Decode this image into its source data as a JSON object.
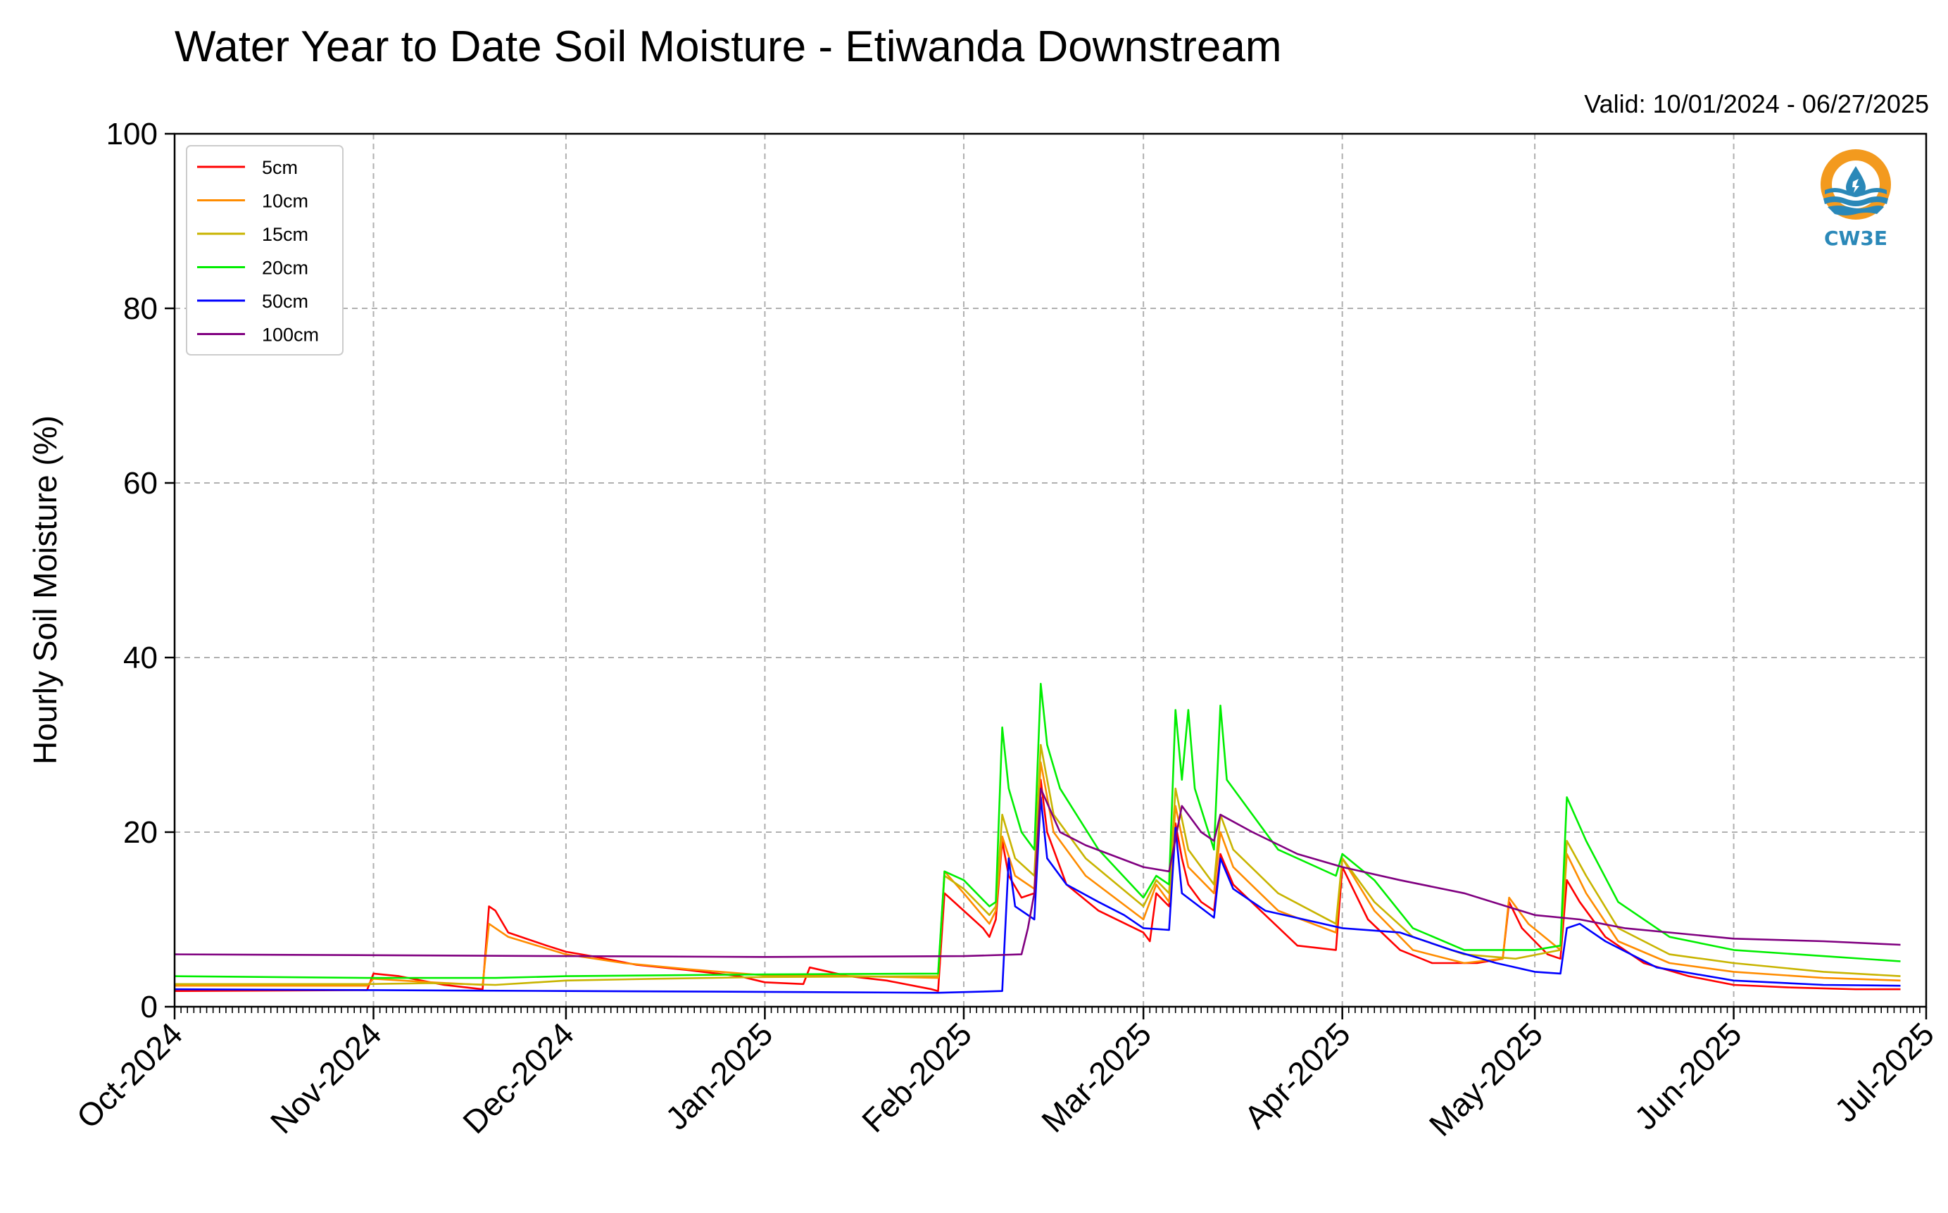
{
  "chart_data": {
    "type": "line",
    "title": "Water Year to Date Soil Moisture - Etiwanda Downstream",
    "subtitle": "Valid: 10/01/2024 - 06/27/2025",
    "xlabel": "",
    "ylabel": "Hourly Soil Moisture (%)",
    "ylim": [
      0,
      100
    ],
    "xlim": [
      "2024-10-01",
      "2025-07-01"
    ],
    "yticks": [
      "0",
      "20",
      "40",
      "60",
      "80",
      "100"
    ],
    "xticks": [
      {
        "date": "2024-10-01",
        "label": "Oct-2024"
      },
      {
        "date": "2024-11-01",
        "label": "Nov-2024"
      },
      {
        "date": "2024-12-01",
        "label": "Dec-2024"
      },
      {
        "date": "2025-01-01",
        "label": "Jan-2025"
      },
      {
        "date": "2025-02-01",
        "label": "Feb-2025"
      },
      {
        "date": "2025-03-01",
        "label": "Mar-2025"
      },
      {
        "date": "2025-04-01",
        "label": "Apr-2025"
      },
      {
        "date": "2025-05-01",
        "label": "May-2025"
      },
      {
        "date": "2025-06-01",
        "label": "Jun-2025"
      },
      {
        "date": "2025-07-01",
        "label": "Jul-2025"
      }
    ],
    "grid": true,
    "legend_position": "top-left",
    "logo_text": "CW3E",
    "series": [
      {
        "name": "5cm",
        "color": "#ff0000",
        "points": [
          [
            "2024-10-01",
            1.8
          ],
          [
            "2024-10-31",
            1.9
          ],
          [
            "2024-11-01",
            3.8
          ],
          [
            "2024-11-05",
            3.5
          ],
          [
            "2024-11-12",
            2.5
          ],
          [
            "2024-11-18",
            2.0
          ],
          [
            "2024-11-19",
            11.5
          ],
          [
            "2024-11-20",
            11.0
          ],
          [
            "2024-11-22",
            8.5
          ],
          [
            "2024-11-28",
            7.0
          ],
          [
            "2024-12-01",
            6.3
          ],
          [
            "2024-12-05",
            5.8
          ],
          [
            "2024-12-12",
            4.8
          ],
          [
            "2024-12-20",
            4.2
          ],
          [
            "2024-12-28",
            3.5
          ],
          [
            "2025-01-01",
            2.8
          ],
          [
            "2025-01-07",
            2.6
          ],
          [
            "2025-01-08",
            4.5
          ],
          [
            "2025-01-14",
            3.5
          ],
          [
            "2025-01-20",
            3.0
          ],
          [
            "2025-01-27",
            2.0
          ],
          [
            "2025-01-28",
            1.8
          ],
          [
            "2025-01-29",
            13.0
          ],
          [
            "2025-02-01",
            11.0
          ],
          [
            "2025-02-04",
            9.0
          ],
          [
            "2025-02-05",
            8.0
          ],
          [
            "2025-02-06",
            10.0
          ],
          [
            "2025-02-07",
            19.0
          ],
          [
            "2025-02-08",
            15.0
          ],
          [
            "2025-02-10",
            12.5
          ],
          [
            "2025-02-12",
            13.0
          ],
          [
            "2025-02-13",
            26.0
          ],
          [
            "2025-02-14",
            20.0
          ],
          [
            "2025-02-17",
            14.0
          ],
          [
            "2025-02-22",
            11.0
          ],
          [
            "2025-03-01",
            8.5
          ],
          [
            "2025-03-02",
            7.5
          ],
          [
            "2025-03-03",
            13.0
          ],
          [
            "2025-03-05",
            11.5
          ],
          [
            "2025-03-06",
            21.0
          ],
          [
            "2025-03-07",
            17.0
          ],
          [
            "2025-03-08",
            14.0
          ],
          [
            "2025-03-10",
            12.0
          ],
          [
            "2025-03-12",
            11.0
          ],
          [
            "2025-03-13",
            17.5
          ],
          [
            "2025-03-15",
            14.0
          ],
          [
            "2025-03-20",
            10.5
          ],
          [
            "2025-03-25",
            7.0
          ],
          [
            "2025-03-31",
            6.5
          ],
          [
            "2025-04-01",
            16.0
          ],
          [
            "2025-04-05",
            10.0
          ],
          [
            "2025-04-10",
            6.5
          ],
          [
            "2025-04-15",
            5.0
          ],
          [
            "2025-04-22",
            5.0
          ],
          [
            "2025-04-26",
            5.5
          ],
          [
            "2025-04-27",
            12.0
          ],
          [
            "2025-04-29",
            9.0
          ],
          [
            "2025-05-03",
            6.0
          ],
          [
            "2025-05-05",
            5.5
          ],
          [
            "2025-05-06",
            14.5
          ],
          [
            "2025-05-08",
            12.0
          ],
          [
            "2025-05-12",
            8.0
          ],
          [
            "2025-05-18",
            5.0
          ],
          [
            "2025-05-25",
            3.5
          ],
          [
            "2025-06-01",
            2.5
          ],
          [
            "2025-06-10",
            2.2
          ],
          [
            "2025-06-20",
            2.0
          ],
          [
            "2025-06-27",
            2.0
          ]
        ]
      },
      {
        "name": "10cm",
        "color": "#ff8c00",
        "points": [
          [
            "2024-10-01",
            2.4
          ],
          [
            "2024-10-31",
            2.4
          ],
          [
            "2024-11-01",
            3.2
          ],
          [
            "2024-11-10",
            2.8
          ],
          [
            "2024-11-18",
            2.5
          ],
          [
            "2024-11-19",
            9.5
          ],
          [
            "2024-11-22",
            8.0
          ],
          [
            "2024-12-01",
            6.0
          ],
          [
            "2024-12-10",
            5.0
          ],
          [
            "2024-12-20",
            4.3
          ],
          [
            "2025-01-01",
            3.6
          ],
          [
            "2025-01-15",
            3.5
          ],
          [
            "2025-01-28",
            3.3
          ],
          [
            "2025-01-29",
            15.5
          ],
          [
            "2025-02-01",
            13.0
          ],
          [
            "2025-02-05",
            9.5
          ],
          [
            "2025-02-06",
            11.0
          ],
          [
            "2025-02-07",
            19.5
          ],
          [
            "2025-02-09",
            15.0
          ],
          [
            "2025-02-12",
            13.5
          ],
          [
            "2025-02-13",
            28.0
          ],
          [
            "2025-02-15",
            20.0
          ],
          [
            "2025-02-20",
            15.0
          ],
          [
            "2025-03-01",
            10.0
          ],
          [
            "2025-03-03",
            14.0
          ],
          [
            "2025-03-05",
            12.0
          ],
          [
            "2025-03-06",
            23.0
          ],
          [
            "2025-03-08",
            16.0
          ],
          [
            "2025-03-12",
            13.0
          ],
          [
            "2025-03-13",
            20.0
          ],
          [
            "2025-03-15",
            16.0
          ],
          [
            "2025-03-22",
            11.0
          ],
          [
            "2025-03-31",
            8.5
          ],
          [
            "2025-04-01",
            17.0
          ],
          [
            "2025-04-06",
            11.0
          ],
          [
            "2025-04-12",
            6.5
          ],
          [
            "2025-04-20",
            5.0
          ],
          [
            "2025-04-26",
            5.5
          ],
          [
            "2025-04-27",
            12.5
          ],
          [
            "2025-04-30",
            9.5
          ],
          [
            "2025-05-05",
            6.5
          ],
          [
            "2025-05-06",
            17.5
          ],
          [
            "2025-05-09",
            13.0
          ],
          [
            "2025-05-14",
            7.5
          ],
          [
            "2025-05-22",
            5.0
          ],
          [
            "2025-06-01",
            4.0
          ],
          [
            "2025-06-15",
            3.3
          ],
          [
            "2025-06-27",
            3.0
          ]
        ]
      },
      {
        "name": "15cm",
        "color": "#c8b400",
        "points": [
          [
            "2024-10-01",
            2.6
          ],
          [
            "2024-10-31",
            2.6
          ],
          [
            "2024-11-10",
            2.7
          ],
          [
            "2024-11-20",
            2.5
          ],
          [
            "2024-12-01",
            3.0
          ],
          [
            "2024-12-15",
            3.2
          ],
          [
            "2025-01-01",
            3.4
          ],
          [
            "2025-01-28",
            3.5
          ],
          [
            "2025-01-29",
            15.0
          ],
          [
            "2025-02-01",
            13.5
          ],
          [
            "2025-02-05",
            10.5
          ],
          [
            "2025-02-06",
            11.5
          ],
          [
            "2025-02-07",
            22.0
          ],
          [
            "2025-02-09",
            17.0
          ],
          [
            "2025-02-12",
            15.0
          ],
          [
            "2025-02-13",
            30.0
          ],
          [
            "2025-02-15",
            22.0
          ],
          [
            "2025-02-20",
            17.0
          ],
          [
            "2025-03-01",
            11.5
          ],
          [
            "2025-03-03",
            14.5
          ],
          [
            "2025-03-05",
            13.0
          ],
          [
            "2025-03-06",
            25.0
          ],
          [
            "2025-03-08",
            18.0
          ],
          [
            "2025-03-12",
            14.0
          ],
          [
            "2025-03-13",
            22.0
          ],
          [
            "2025-03-15",
            18.0
          ],
          [
            "2025-03-22",
            13.0
          ],
          [
            "2025-03-31",
            9.5
          ],
          [
            "2025-04-01",
            17.0
          ],
          [
            "2025-04-06",
            12.0
          ],
          [
            "2025-04-12",
            8.0
          ],
          [
            "2025-04-20",
            6.0
          ],
          [
            "2025-04-28",
            5.5
          ],
          [
            "2025-05-05",
            6.5
          ],
          [
            "2025-05-06",
            19.0
          ],
          [
            "2025-05-09",
            15.0
          ],
          [
            "2025-05-14",
            9.0
          ],
          [
            "2025-05-22",
            6.0
          ],
          [
            "2025-06-01",
            5.0
          ],
          [
            "2025-06-15",
            4.0
          ],
          [
            "2025-06-27",
            3.5
          ]
        ]
      },
      {
        "name": "20cm",
        "color": "#00ee00",
        "points": [
          [
            "2024-10-01",
            3.5
          ],
          [
            "2024-10-31",
            3.3
          ],
          [
            "2024-11-20",
            3.3
          ],
          [
            "2024-12-01",
            3.5
          ],
          [
            "2024-12-15",
            3.6
          ],
          [
            "2025-01-01",
            3.7
          ],
          [
            "2025-01-28",
            3.8
          ],
          [
            "2025-01-29",
            15.5
          ],
          [
            "2025-02-01",
            14.5
          ],
          [
            "2025-02-05",
            11.5
          ],
          [
            "2025-02-06",
            12.0
          ],
          [
            "2025-02-07",
            32.0
          ],
          [
            "2025-02-08",
            25.0
          ],
          [
            "2025-02-10",
            20.0
          ],
          [
            "2025-02-12",
            18.0
          ],
          [
            "2025-02-13",
            37.0
          ],
          [
            "2025-02-14",
            30.0
          ],
          [
            "2025-02-16",
            25.0
          ],
          [
            "2025-02-22",
            18.0
          ],
          [
            "2025-03-01",
            12.5
          ],
          [
            "2025-03-03",
            15.0
          ],
          [
            "2025-03-05",
            14.0
          ],
          [
            "2025-03-06",
            34.0
          ],
          [
            "2025-03-07",
            26.0
          ],
          [
            "2025-03-08",
            34.0
          ],
          [
            "2025-03-09",
            25.0
          ],
          [
            "2025-03-12",
            18.0
          ],
          [
            "2025-03-13",
            34.5
          ],
          [
            "2025-03-14",
            26.0
          ],
          [
            "2025-03-16",
            24.0
          ],
          [
            "2025-03-22",
            18.0
          ],
          [
            "2025-03-31",
            15.0
          ],
          [
            "2025-04-01",
            17.5
          ],
          [
            "2025-04-06",
            14.5
          ],
          [
            "2025-04-12",
            9.0
          ],
          [
            "2025-04-20",
            6.5
          ],
          [
            "2025-05-01",
            6.5
          ],
          [
            "2025-05-05",
            7.0
          ],
          [
            "2025-05-06",
            24.0
          ],
          [
            "2025-05-09",
            19.0
          ],
          [
            "2025-05-14",
            12.0
          ],
          [
            "2025-05-22",
            8.0
          ],
          [
            "2025-06-01",
            6.5
          ],
          [
            "2025-06-15",
            5.8
          ],
          [
            "2025-06-27",
            5.2
          ]
        ]
      },
      {
        "name": "50cm",
        "color": "#0000ff",
        "points": [
          [
            "2024-10-01",
            2.0
          ],
          [
            "2024-11-01",
            1.9
          ],
          [
            "2024-12-01",
            1.8
          ],
          [
            "2025-01-01",
            1.7
          ],
          [
            "2025-01-28",
            1.6
          ],
          [
            "2025-02-07",
            1.8
          ],
          [
            "2025-02-08",
            17.0
          ],
          [
            "2025-02-09",
            11.5
          ],
          [
            "2025-02-12",
            10.0
          ],
          [
            "2025-02-13",
            24.0
          ],
          [
            "2025-02-14",
            17.0
          ],
          [
            "2025-02-17",
            14.0
          ],
          [
            "2025-02-22",
            12.0
          ],
          [
            "2025-02-26",
            10.5
          ],
          [
            "2025-03-01",
            9.0
          ],
          [
            "2025-03-05",
            8.8
          ],
          [
            "2025-03-06",
            20.5
          ],
          [
            "2025-03-07",
            13.0
          ],
          [
            "2025-03-12",
            10.2
          ],
          [
            "2025-03-13",
            17.0
          ],
          [
            "2025-03-15",
            13.5
          ],
          [
            "2025-03-20",
            11.0
          ],
          [
            "2025-03-26",
            10.0
          ],
          [
            "2025-04-01",
            9.0
          ],
          [
            "2025-04-10",
            8.5
          ],
          [
            "2025-04-18",
            6.5
          ],
          [
            "2025-04-25",
            5.0
          ],
          [
            "2025-05-01",
            4.0
          ],
          [
            "2025-05-05",
            3.8
          ],
          [
            "2025-05-06",
            9.0
          ],
          [
            "2025-05-08",
            9.5
          ],
          [
            "2025-05-12",
            7.5
          ],
          [
            "2025-05-20",
            4.5
          ],
          [
            "2025-06-01",
            3.0
          ],
          [
            "2025-06-15",
            2.5
          ],
          [
            "2025-06-27",
            2.4
          ]
        ]
      },
      {
        "name": "100cm",
        "color": "#800080",
        "points": [
          [
            "2024-10-01",
            6.0
          ],
          [
            "2024-11-01",
            5.9
          ],
          [
            "2024-12-01",
            5.8
          ],
          [
            "2025-01-01",
            5.7
          ],
          [
            "2025-02-01",
            5.8
          ],
          [
            "2025-02-10",
            6.0
          ],
          [
            "2025-02-11",
            9.0
          ],
          [
            "2025-02-12",
            13.0
          ],
          [
            "2025-02-13",
            25.0
          ],
          [
            "2025-02-16",
            20.0
          ],
          [
            "2025-02-20",
            18.5
          ],
          [
            "2025-03-01",
            16.0
          ],
          [
            "2025-03-05",
            15.5
          ],
          [
            "2025-03-07",
            23.0
          ],
          [
            "2025-03-10",
            20.0
          ],
          [
            "2025-03-12",
            19.0
          ],
          [
            "2025-03-13",
            22.0
          ],
          [
            "2025-03-18",
            20.0
          ],
          [
            "2025-03-25",
            17.5
          ],
          [
            "2025-04-01",
            16.0
          ],
          [
            "2025-04-10",
            14.5
          ],
          [
            "2025-04-20",
            13.0
          ],
          [
            "2025-05-01",
            10.5
          ],
          [
            "2025-05-08",
            10.0
          ],
          [
            "2025-05-15",
            9.0
          ],
          [
            "2025-06-01",
            7.8
          ],
          [
            "2025-06-15",
            7.5
          ],
          [
            "2025-06-27",
            7.1
          ]
        ]
      }
    ]
  }
}
